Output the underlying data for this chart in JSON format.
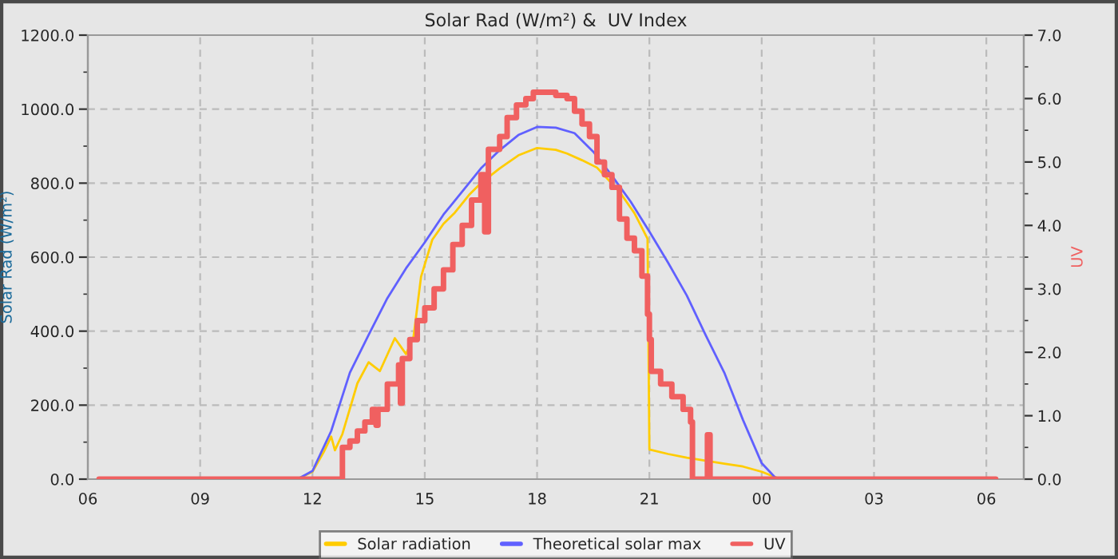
{
  "chart_data": {
    "type": "line",
    "title": "Solar Rad (W/m²) &  UV Index",
    "ylabel": "Solar Rad (W/m²)",
    "y2label": "UV",
    "xlim": [
      6,
      31
    ],
    "xticks": [
      {
        "value": 6,
        "label": "06"
      },
      {
        "value": 9,
        "label": "09"
      },
      {
        "value": 12,
        "label": "12"
      },
      {
        "value": 15,
        "label": "15"
      },
      {
        "value": 18,
        "label": "18"
      },
      {
        "value": 21,
        "label": "21"
      },
      {
        "value": 24,
        "label": "00"
      },
      {
        "value": 27,
        "label": "03"
      },
      {
        "value": 30,
        "label": "06"
      }
    ],
    "ylim": [
      0,
      1200
    ],
    "yticks": [
      {
        "value": 0,
        "label": "0.0"
      },
      {
        "value": 200,
        "label": "200.0"
      },
      {
        "value": 400,
        "label": "400.0"
      },
      {
        "value": 600,
        "label": "600.0"
      },
      {
        "value": 800,
        "label": "800.0"
      },
      {
        "value": 1000,
        "label": "1000.0"
      },
      {
        "value": 1200,
        "label": "1200.0"
      }
    ],
    "y2lim": [
      0,
      7
    ],
    "y2ticks": [
      {
        "value": 0,
        "label": "0.0"
      },
      {
        "value": 1,
        "label": "1.0"
      },
      {
        "value": 2,
        "label": "2.0"
      },
      {
        "value": 3,
        "label": "3.0"
      },
      {
        "value": 4,
        "label": "4.0"
      },
      {
        "value": 5,
        "label": "5.0"
      },
      {
        "value": 6,
        "label": "6.0"
      },
      {
        "value": 7,
        "label": "7.0"
      }
    ],
    "grid": true,
    "legend": "bottom",
    "series": [
      {
        "name": "Solar radiation",
        "color": "#ffcc00",
        "x": [
          11.6,
          12,
          12.3,
          12.5,
          12.6,
          12.8,
          13.2,
          13.5,
          13.8,
          14.2,
          14.5,
          14.7,
          14.9,
          15.2,
          15.5,
          15.8,
          16.2,
          16.5,
          17,
          17.5,
          18,
          18.5,
          18.8,
          19.2,
          19.6,
          20.2,
          20.6,
          20.95,
          21.0,
          21.5,
          22,
          22.5,
          23,
          23.5,
          24,
          24.5
        ],
        "values": [
          0,
          20,
          73,
          115,
          78,
          122,
          259,
          316,
          292,
          381,
          338,
          385,
          547,
          647,
          690,
          720,
          770,
          800,
          840,
          875,
          895,
          890,
          880,
          862,
          842,
          777,
          719,
          650,
          80,
          68,
          58,
          50,
          42,
          34,
          20,
          0
        ]
      },
      {
        "name": "Theoretical solar max",
        "color": "#6060ff",
        "x": [
          11.6,
          12,
          12.5,
          13,
          13.5,
          14,
          14.5,
          15,
          15.5,
          16,
          16.5,
          17,
          17.5,
          18,
          18.5,
          19,
          19.5,
          20,
          20.5,
          21,
          21.5,
          22,
          22.5,
          23,
          23.5,
          24,
          24.4
        ],
        "values": [
          0,
          22,
          130,
          288,
          390,
          489,
          570,
          640,
          715,
          777,
          840,
          889,
          930,
          952,
          950,
          935,
          885,
          820,
          750,
          669,
          585,
          496,
          390,
          288,
          160,
          43,
          0
        ]
      },
      {
        "name": "UV",
        "type": "step",
        "axis": "y2",
        "color": "#f06060",
        "x": [
          6.3,
          12.8,
          13.0,
          13.2,
          13.4,
          13.6,
          13.7,
          13.75,
          14.0,
          14.3,
          14.35,
          14.4,
          14.6,
          14.8,
          15.0,
          15.25,
          15.5,
          15.75,
          16.0,
          16.25,
          16.5,
          16.6,
          16.7,
          17.0,
          17.2,
          17.45,
          17.7,
          17.9,
          18.5,
          18.8,
          19.0,
          19.2,
          19.4,
          19.6,
          19.8,
          20.0,
          20.2,
          20.4,
          20.6,
          20.8,
          20.95,
          21.0,
          21.05,
          21.3,
          21.6,
          21.9,
          22.1,
          22.15,
          22.55,
          22.62,
          30.25
        ],
        "values": [
          0,
          0.5,
          0.6,
          0.76,
          0.9,
          1.1,
          0.85,
          1.1,
          1.5,
          1.8,
          1.2,
          1.9,
          2.2,
          2.5,
          2.7,
          3.0,
          3.3,
          3.7,
          4.0,
          4.4,
          4.8,
          3.9,
          5.2,
          5.4,
          5.7,
          5.9,
          6.0,
          6.1,
          6.05,
          6.0,
          5.8,
          5.6,
          5.4,
          5.0,
          4.8,
          4.6,
          4.1,
          3.8,
          3.6,
          3.2,
          2.6,
          2.2,
          1.7,
          1.5,
          1.3,
          1.1,
          0.9,
          0,
          0.7,
          0,
          0
        ]
      }
    ]
  }
}
